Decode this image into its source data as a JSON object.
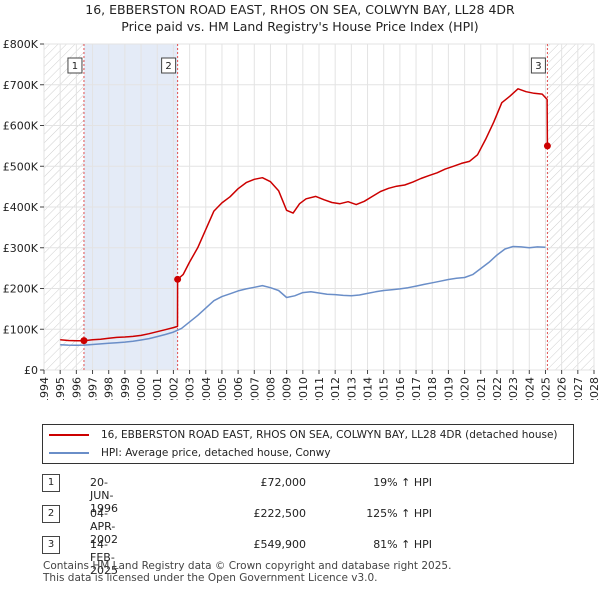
{
  "chart_data": {
    "type": "line",
    "title": "16, EBBERSTON ROAD EAST, RHOS ON SEA, COLWYN BAY, LL28 4DR",
    "subtitle": "Price paid vs. HM Land Registry's House Price Index (HPI)",
    "xlim": [
      1994,
      2028
    ],
    "ylim": [
      0,
      800000
    ],
    "x_ticks": [
      "1994",
      "1995",
      "1996",
      "1997",
      "1998",
      "1999",
      "2000",
      "2001",
      "2002",
      "2003",
      "2004",
      "2005",
      "2006",
      "2007",
      "2008",
      "2009",
      "2010",
      "2011",
      "2012",
      "2013",
      "2014",
      "2015",
      "2016",
      "2017",
      "2018",
      "2019",
      "2020",
      "2021",
      "2022",
      "2023",
      "2024",
      "2025",
      "2026",
      "2027",
      "2028"
    ],
    "y_ticks": [
      {
        "value": 0,
        "label": "£0"
      },
      {
        "value": 100000,
        "label": "£100K"
      },
      {
        "value": 200000,
        "label": "£200K"
      },
      {
        "value": 300000,
        "label": "£300K"
      },
      {
        "value": 400000,
        "label": "£400K"
      },
      {
        "value": 500000,
        "label": "£500K"
      },
      {
        "value": 600000,
        "label": "£600K"
      },
      {
        "value": 700000,
        "label": "£700K"
      },
      {
        "value": 800000,
        "label": "£800K"
      }
    ],
    "grid": true,
    "shaded_regions": [
      {
        "from": 1994.0,
        "to": 1996.47,
        "style": "hatch"
      },
      {
        "from": 1996.47,
        "to": 2002.26,
        "style": "shade"
      },
      {
        "from": 2025.12,
        "to": 2028.0,
        "style": "hatch"
      }
    ],
    "series": [
      {
        "name": "16, EBBERSTON ROAD EAST, RHOS ON SEA, COLWYN BAY, LL28 4DR (detached house)",
        "color": "#cc0000",
        "points": [
          [
            1995.0,
            74000
          ],
          [
            1995.5,
            72500
          ],
          [
            1996.0,
            72000
          ],
          [
            1996.47,
            72000
          ],
          [
            1997.0,
            74000
          ],
          [
            1997.5,
            75500
          ],
          [
            1998.0,
            78000
          ],
          [
            1998.5,
            80000
          ],
          [
            1999.0,
            81000
          ],
          [
            1999.5,
            82500
          ],
          [
            2000.0,
            85000
          ],
          [
            2000.5,
            89000
          ],
          [
            2001.0,
            94000
          ],
          [
            2001.5,
            99000
          ],
          [
            2002.0,
            104000
          ],
          [
            2002.25,
            107000
          ],
          [
            2002.26,
            222500
          ],
          [
            2002.6,
            234000
          ],
          [
            2003.0,
            265000
          ],
          [
            2003.5,
            300000
          ],
          [
            2004.0,
            345000
          ],
          [
            2004.5,
            390000
          ],
          [
            2005.0,
            410000
          ],
          [
            2005.5,
            425000
          ],
          [
            2006.0,
            445000
          ],
          [
            2006.5,
            460000
          ],
          [
            2007.0,
            468000
          ],
          [
            2007.5,
            472000
          ],
          [
            2008.0,
            462000
          ],
          [
            2008.5,
            440000
          ],
          [
            2009.0,
            392000
          ],
          [
            2009.4,
            385000
          ],
          [
            2009.8,
            408000
          ],
          [
            2010.2,
            420000
          ],
          [
            2010.8,
            426000
          ],
          [
            2011.3,
            418000
          ],
          [
            2011.8,
            411000
          ],
          [
            2012.3,
            408000
          ],
          [
            2012.8,
            413000
          ],
          [
            2013.3,
            406000
          ],
          [
            2013.8,
            414000
          ],
          [
            2014.3,
            426000
          ],
          [
            2014.8,
            438000
          ],
          [
            2015.3,
            446000
          ],
          [
            2015.8,
            451000
          ],
          [
            2016.3,
            454000
          ],
          [
            2016.8,
            461000
          ],
          [
            2017.3,
            470000
          ],
          [
            2017.8,
            477000
          ],
          [
            2018.3,
            484000
          ],
          [
            2018.8,
            493000
          ],
          [
            2019.3,
            500000
          ],
          [
            2019.8,
            507000
          ],
          [
            2020.3,
            512000
          ],
          [
            2020.8,
            528000
          ],
          [
            2021.3,
            566000
          ],
          [
            2021.8,
            608000
          ],
          [
            2022.3,
            656000
          ],
          [
            2022.8,
            672000
          ],
          [
            2023.3,
            690000
          ],
          [
            2023.8,
            683000
          ],
          [
            2024.3,
            679000
          ],
          [
            2024.8,
            677000
          ],
          [
            2025.1,
            664000
          ],
          [
            2025.12,
            549900
          ]
        ]
      },
      {
        "name": "HPI: Average price, detached house, Conwy",
        "color": "#6a8ec8",
        "points": [
          [
            1995.0,
            62000
          ],
          [
            1995.5,
            61000
          ],
          [
            1996.0,
            60500
          ],
          [
            1996.5,
            61000
          ],
          [
            1997.0,
            62500
          ],
          [
            1997.5,
            64000
          ],
          [
            1998.0,
            65500
          ],
          [
            1998.5,
            67000
          ],
          [
            1999.0,
            68500
          ],
          [
            1999.5,
            70500
          ],
          [
            2000.0,
            73500
          ],
          [
            2000.5,
            77000
          ],
          [
            2001.0,
            82000
          ],
          [
            2001.5,
            87000
          ],
          [
            2002.0,
            93000
          ],
          [
            2002.5,
            102000
          ],
          [
            2003.0,
            118000
          ],
          [
            2003.5,
            134000
          ],
          [
            2004.0,
            152000
          ],
          [
            2004.5,
            170000
          ],
          [
            2005.0,
            180000
          ],
          [
            2005.5,
            187000
          ],
          [
            2006.0,
            194000
          ],
          [
            2006.5,
            199000
          ],
          [
            2007.0,
            203000
          ],
          [
            2007.5,
            207000
          ],
          [
            2008.0,
            202000
          ],
          [
            2008.5,
            195000
          ],
          [
            2009.0,
            178000
          ],
          [
            2009.5,
            182000
          ],
          [
            2010.0,
            190000
          ],
          [
            2010.5,
            192000
          ],
          [
            2011.0,
            189000
          ],
          [
            2011.5,
            186000
          ],
          [
            2012.0,
            185000
          ],
          [
            2012.5,
            183000
          ],
          [
            2013.0,
            182000
          ],
          [
            2013.5,
            184000
          ],
          [
            2014.0,
            188000
          ],
          [
            2014.5,
            192000
          ],
          [
            2015.0,
            195000
          ],
          [
            2015.5,
            197000
          ],
          [
            2016.0,
            199000
          ],
          [
            2016.5,
            202000
          ],
          [
            2017.0,
            206000
          ],
          [
            2017.5,
            210000
          ],
          [
            2018.0,
            214000
          ],
          [
            2018.5,
            218000
          ],
          [
            2019.0,
            222000
          ],
          [
            2019.5,
            225000
          ],
          [
            2020.0,
            227000
          ],
          [
            2020.5,
            234000
          ],
          [
            2021.0,
            249000
          ],
          [
            2021.5,
            264000
          ],
          [
            2022.0,
            282000
          ],
          [
            2022.5,
            297000
          ],
          [
            2023.0,
            303000
          ],
          [
            2023.5,
            302000
          ],
          [
            2024.0,
            300000
          ],
          [
            2024.5,
            302000
          ],
          [
            2025.0,
            301000
          ]
        ]
      }
    ],
    "sales": [
      {
        "id": "1",
        "x": 1996.47,
        "y": 72000
      },
      {
        "id": "2",
        "x": 2002.26,
        "y": 222500
      },
      {
        "id": "3",
        "x": 2025.12,
        "y": 549900
      }
    ]
  },
  "legend": {
    "items": [
      {
        "label": "16, EBBERSTON ROAD EAST, RHOS ON SEA, COLWYN BAY, LL28 4DR (detached house)",
        "color": "#cc0000"
      },
      {
        "label": "HPI: Average price, detached house, Conwy",
        "color": "#6a8ec8"
      }
    ]
  },
  "transactions": [
    {
      "id": "1",
      "date": "20-JUN-1996",
      "price": "£72,000",
      "hpi": "19% ↑ HPI"
    },
    {
      "id": "2",
      "date": "04-APR-2002",
      "price": "£222,500",
      "hpi": "125% ↑ HPI"
    },
    {
      "id": "3",
      "date": "14-FEB-2025",
      "price": "£549,900",
      "hpi": "81% ↑ HPI"
    }
  ],
  "footer": {
    "line1": "Contains HM Land Registry data © Crown copyright and database right 2025.",
    "line2": "This data is licensed under the Open Government Licence v3.0."
  }
}
